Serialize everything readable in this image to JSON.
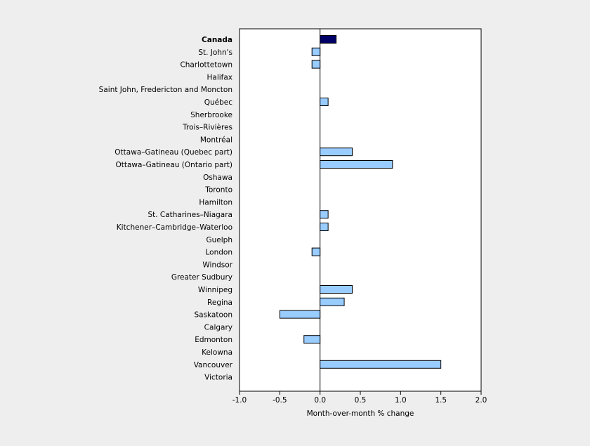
{
  "chart_data": {
    "type": "bar",
    "orientation": "horizontal",
    "xlabel": "Month-over-month % change",
    "xlim": [
      -1.0,
      2.0
    ],
    "x_ticks": [
      "-1.0",
      "-0.5",
      "0.0",
      "0.5",
      "1.0",
      "1.5",
      "2.0"
    ],
    "categories": [
      "Canada",
      "St. John's",
      "Charlottetown",
      "Halifax",
      "Saint John, Fredericton and Moncton",
      "Québec",
      "Sherbrooke",
      "Trois–Rivières",
      "Montréal",
      "Ottawa–Gatineau (Quebec part)",
      "Ottawa–Gatineau (Ontario part)",
      "Oshawa",
      "Toronto",
      "Hamilton",
      "St. Catharines–Niagara",
      "Kitchener–Cambridge–Waterloo",
      "Guelph",
      "London",
      "Windsor",
      "Greater Sudbury",
      "Winnipeg",
      "Regina",
      "Saskatoon",
      "Calgary",
      "Edmonton",
      "Kelowna",
      "Vancouver",
      "Victoria"
    ],
    "values": [
      0.2,
      -0.1,
      -0.1,
      0.0,
      0.0,
      0.1,
      0.0,
      0.0,
      0.0,
      0.4,
      0.9,
      0.0,
      0.0,
      0.0,
      0.1,
      0.1,
      0.0,
      -0.1,
      0.0,
      0.0,
      0.4,
      0.3,
      -0.5,
      0.0,
      -0.2,
      0.0,
      1.5,
      0.0
    ],
    "highlight_category": "Canada",
    "colors": {
      "highlight_fill": "#000066",
      "bar_fill": "#99ccff",
      "bar_stroke": "#000000",
      "frame": "#000000",
      "plot_background": "#ffffff",
      "page_background": "#eeeeee"
    }
  }
}
